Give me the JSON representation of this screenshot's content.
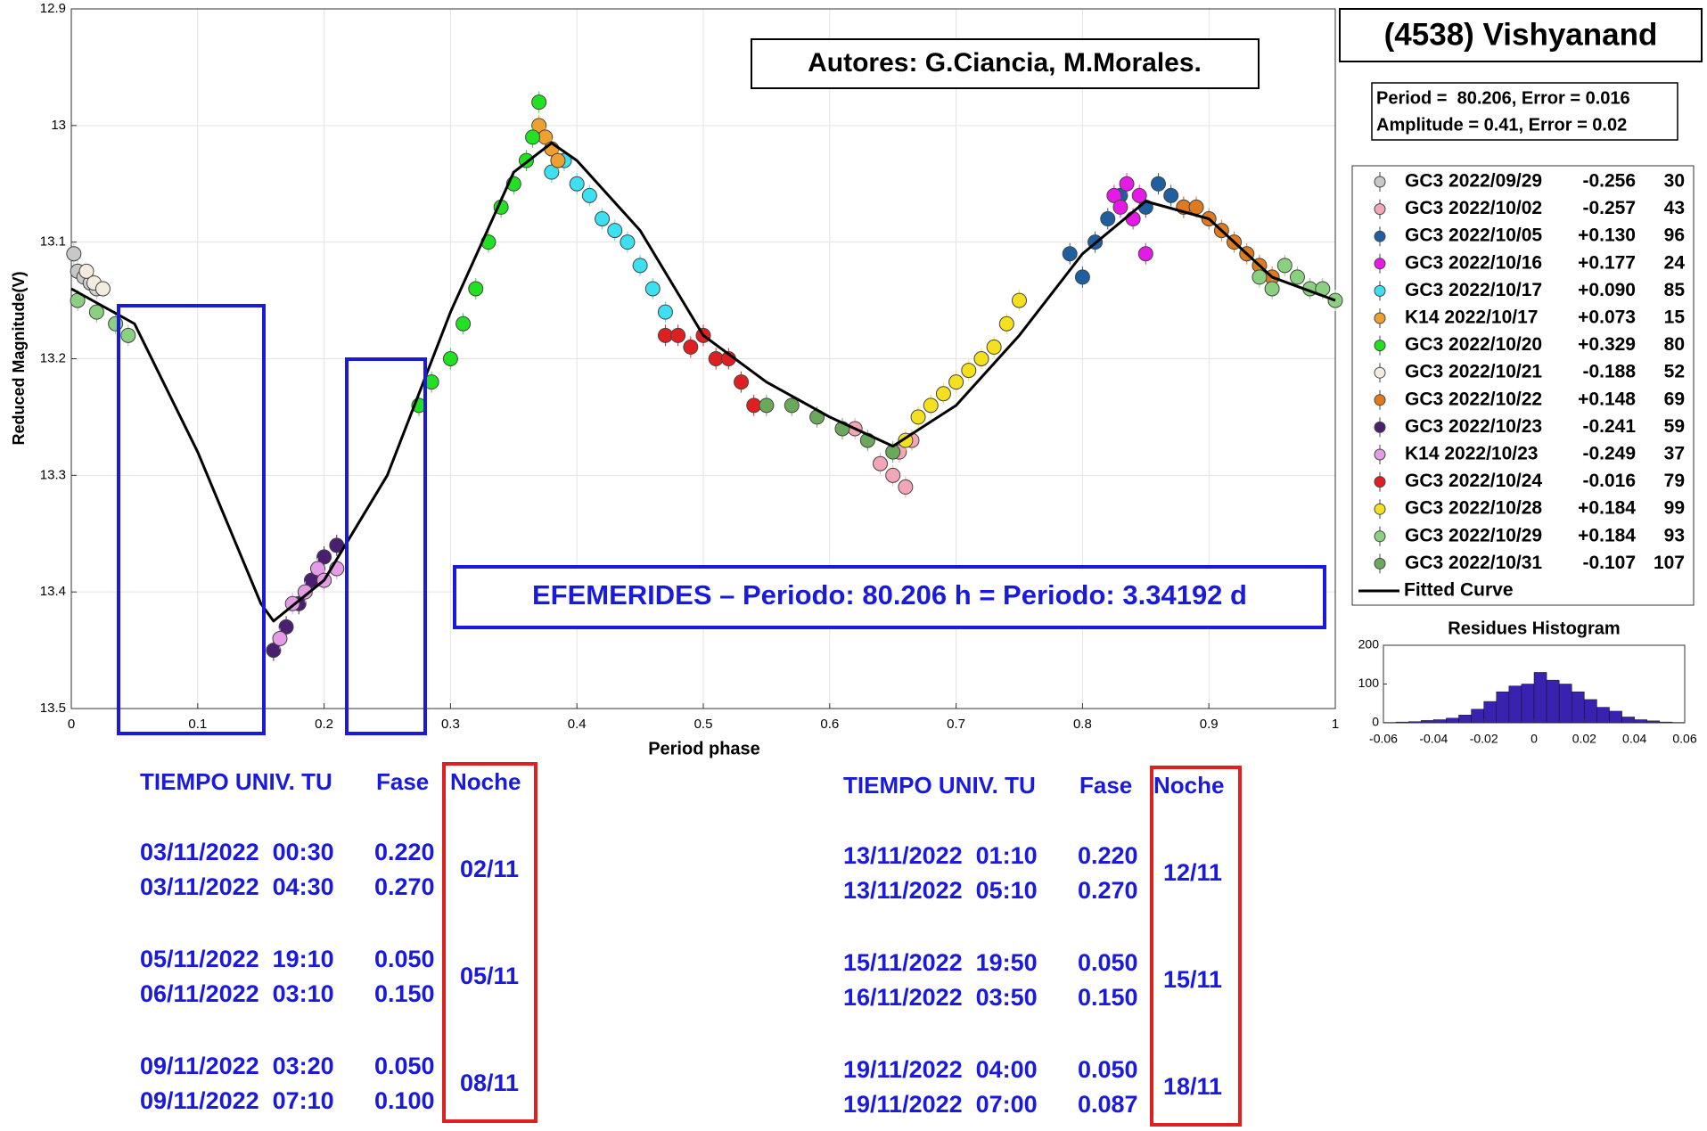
{
  "chart_data": [
    {
      "type": "scatter",
      "title": "(4538) Vishyanand",
      "period_text": "Period =  80.206, Error = 0.016",
      "amplitude_text": "Amplitude = 0.41, Error = 0.02",
      "annotations": [
        "Autores: G.Ciancia, M.Morales.",
        "EFEMERIDES – Periodo: 80.206 h = Periodo: 3.34192 d"
      ],
      "xlabel": "Period phase",
      "ylabel": "Reduced Magnitude(V)",
      "xlim": [
        0,
        1
      ],
      "ylim": [
        12.9,
        13.5
      ],
      "y_reversed": true,
      "grid": true,
      "xticks": [
        0,
        0.1,
        0.2,
        0.3,
        0.4,
        0.5,
        0.6,
        0.7,
        0.8,
        0.9,
        1
      ],
      "yticks": [
        12.9,
        13,
        13.1,
        13.2,
        13.3,
        13.4,
        13.5
      ],
      "series": [
        {
          "name": "GC3 2022/09/29",
          "offset": "-0.256",
          "count": 30,
          "color": "#c8c8c8",
          "x": [
            0.002,
            0.005,
            0.01,
            0.015,
            0.02
          ],
          "values": [
            13.11,
            13.125,
            13.13,
            13.135,
            13.14
          ]
        },
        {
          "name": "GC3 2022/10/02",
          "offset": "-0.257",
          "count": 43,
          "color": "#f4a6b8",
          "x": [
            0.62,
            0.64,
            0.65,
            0.655,
            0.66,
            0.665
          ],
          "values": [
            13.26,
            13.29,
            13.3,
            13.28,
            13.31,
            13.27
          ]
        },
        {
          "name": "GC3 2022/10/05",
          "offset": "+0.130",
          "count": 96,
          "color": "#1f5fa0",
          "x": [
            0.79,
            0.8,
            0.81,
            0.82,
            0.83,
            0.85,
            0.86,
            0.87,
            0.88
          ],
          "values": [
            13.11,
            13.13,
            13.1,
            13.08,
            13.06,
            13.07,
            13.05,
            13.06,
            13.07
          ]
        },
        {
          "name": "GC3 2022/10/16",
          "offset": "+0.177",
          "count": 24,
          "color": "#e619e6",
          "x": [
            0.825,
            0.83,
            0.835,
            0.84,
            0.845,
            0.85
          ],
          "values": [
            13.06,
            13.07,
            13.05,
            13.08,
            13.06,
            13.11
          ]
        },
        {
          "name": "GC3 2022/10/17",
          "offset": "+0.090",
          "count": 85,
          "color": "#3de0f0",
          "x": [
            0.38,
            0.39,
            0.4,
            0.41,
            0.42,
            0.43,
            0.44,
            0.45,
            0.46,
            0.47
          ],
          "values": [
            13.04,
            13.03,
            13.05,
            13.06,
            13.08,
            13.09,
            13.1,
            13.12,
            13.14,
            13.16
          ]
        },
        {
          "name": "K14 2022/10/17",
          "offset": "+0.073",
          "count": 15,
          "color": "#f0a030",
          "x": [
            0.37,
            0.375,
            0.38,
            0.385
          ],
          "values": [
            13.0,
            13.01,
            13.02,
            13.03
          ]
        },
        {
          "name": "GC3 2022/10/20",
          "offset": "+0.329",
          "count": 80,
          "color": "#22e022",
          "x": [
            0.275,
            0.285,
            0.3,
            0.31,
            0.32,
            0.33,
            0.34,
            0.35,
            0.36,
            0.365,
            0.37
          ],
          "values": [
            13.24,
            13.22,
            13.2,
            13.17,
            13.14,
            13.1,
            13.07,
            13.05,
            13.03,
            13.01,
            12.98
          ]
        },
        {
          "name": "GC3 2022/10/21",
          "offset": "-0.188",
          "count": 52,
          "color": "#f5ece0",
          "x": [
            0.012,
            0.018,
            0.025
          ],
          "values": [
            13.125,
            13.135,
            13.14
          ]
        },
        {
          "name": "GC3 2022/10/22",
          "offset": "+0.148",
          "count": 69,
          "color": "#e07a1f",
          "x": [
            0.88,
            0.89,
            0.9,
            0.91,
            0.92,
            0.93,
            0.94,
            0.95
          ],
          "values": [
            13.07,
            13.07,
            13.08,
            13.09,
            13.1,
            13.11,
            13.12,
            13.13
          ]
        },
        {
          "name": "GC3 2022/10/23",
          "offset": "-0.241",
          "count": 59,
          "color": "#4b1f6f",
          "x": [
            0.16,
            0.17,
            0.18,
            0.19,
            0.2,
            0.21
          ],
          "values": [
            13.45,
            13.43,
            13.41,
            13.39,
            13.37,
            13.36
          ]
        },
        {
          "name": "K14 2022/10/23",
          "offset": "-0.249",
          "count": 37,
          "color": "#e69be6",
          "x": [
            0.165,
            0.175,
            0.185,
            0.195,
            0.2,
            0.21
          ],
          "values": [
            13.44,
            13.41,
            13.4,
            13.38,
            13.39,
            13.38
          ]
        },
        {
          "name": "GC3 2022/10/24",
          "offset": "-0.016",
          "count": 79,
          "color": "#e02020",
          "x": [
            0.47,
            0.48,
            0.49,
            0.5,
            0.51,
            0.52,
            0.53,
            0.54
          ],
          "values": [
            13.18,
            13.18,
            13.19,
            13.18,
            13.2,
            13.2,
            13.22,
            13.24
          ]
        },
        {
          "name": "GC3 2022/10/28",
          "offset": "+0.184",
          "count": 99,
          "color": "#f5e020",
          "x": [
            0.66,
            0.67,
            0.68,
            0.69,
            0.7,
            0.71,
            0.72,
            0.73,
            0.74,
            0.75
          ],
          "values": [
            13.27,
            13.25,
            13.24,
            13.23,
            13.22,
            13.21,
            13.2,
            13.19,
            13.17,
            13.15
          ]
        },
        {
          "name": "GC3 2022/10/29",
          "offset": "+0.184",
          "count": 93,
          "color": "#8ad080",
          "x": [
            0.005,
            0.02,
            0.035,
            0.045,
            0.94,
            0.95,
            0.96,
            0.97,
            0.98,
            0.99,
            1.0
          ],
          "values": [
            13.15,
            13.16,
            13.17,
            13.18,
            13.13,
            13.14,
            13.12,
            13.13,
            13.14,
            13.14,
            13.15
          ]
        },
        {
          "name": "GC3 2022/10/31",
          "offset": "-0.107",
          "count": 107,
          "color": "#6aa85a",
          "x": [
            0.55,
            0.57,
            0.59,
            0.61,
            0.63,
            0.65
          ],
          "values": [
            13.24,
            13.24,
            13.25,
            13.26,
            13.27,
            13.28
          ]
        },
        {
          "name": "Fitted Curve",
          "type": "line",
          "color": "#000000",
          "x": [
            0,
            0.05,
            0.1,
            0.15,
            0.16,
            0.2,
            0.25,
            0.3,
            0.35,
            0.38,
            0.4,
            0.45,
            0.5,
            0.55,
            0.6,
            0.65,
            0.7,
            0.75,
            0.8,
            0.85,
            0.9,
            0.95,
            1
          ],
          "values": [
            13.14,
            13.17,
            13.28,
            13.41,
            13.425,
            13.39,
            13.3,
            13.16,
            13.04,
            13.015,
            13.03,
            13.09,
            13.18,
            13.22,
            13.25,
            13.275,
            13.24,
            13.18,
            13.11,
            13.065,
            13.08,
            13.13,
            13.15
          ]
        }
      ]
    },
    {
      "type": "histogram",
      "title": "Residues Histogram",
      "color": "#3a22b0",
      "bins": [
        -0.06,
        -0.055,
        -0.05,
        -0.045,
        -0.04,
        -0.035,
        -0.03,
        -0.025,
        -0.02,
        -0.015,
        -0.01,
        -0.005,
        0,
        0.005,
        0.01,
        0.015,
        0.02,
        0.025,
        0.03,
        0.035,
        0.04,
        0.045,
        0.05,
        0.055,
        0.06
      ],
      "values": [
        1,
        2,
        3,
        6,
        8,
        12,
        20,
        35,
        55,
        80,
        95,
        100,
        130,
        110,
        100,
        80,
        60,
        40,
        30,
        15,
        8,
        5,
        2,
        1
      ],
      "xlim": [
        -0.06,
        0.06
      ],
      "ylim": [
        0,
        200
      ],
      "xticks": [
        -0.06,
        -0.04,
        -0.02,
        0,
        0.02,
        0.04,
        0.06
      ],
      "yticks": [
        0,
        100,
        200
      ]
    }
  ],
  "tables": [
    {
      "headers": [
        "TIEMPO UNIV. TU",
        "Fase",
        "Noche"
      ],
      "groups": [
        {
          "rows": [
            [
              "03/11/2022  00:30",
              "0.220"
            ],
            [
              "03/11/2022  04:30",
              "0.270"
            ]
          ],
          "noche": "02/11"
        },
        {
          "rows": [
            [
              "05/11/2022  19:10",
              "0.050"
            ],
            [
              "06/11/2022  03:10",
              "0.150"
            ]
          ],
          "noche": "05/11"
        },
        {
          "rows": [
            [
              "09/11/2022  03:20",
              "0.050"
            ],
            [
              "09/11/2022  07:10",
              "0.100"
            ]
          ],
          "noche": "08/11"
        }
      ]
    },
    {
      "headers": [
        "TIEMPO UNIV. TU",
        "Fase",
        "Noche"
      ],
      "groups": [
        {
          "rows": [
            [
              "13/11/2022  01:10",
              "0.220"
            ],
            [
              "13/11/2022  05:10",
              "0.270"
            ]
          ],
          "noche": "12/11"
        },
        {
          "rows": [
            [
              "15/11/2022  19:50",
              "0.050"
            ],
            [
              "16/11/2022  03:50",
              "0.150"
            ]
          ],
          "noche": "15/11"
        },
        {
          "rows": [
            [
              "19/11/2022  04:00",
              "0.050"
            ],
            [
              "19/11/2022  07:00",
              "0.087"
            ]
          ],
          "noche": "18/11"
        }
      ]
    }
  ]
}
